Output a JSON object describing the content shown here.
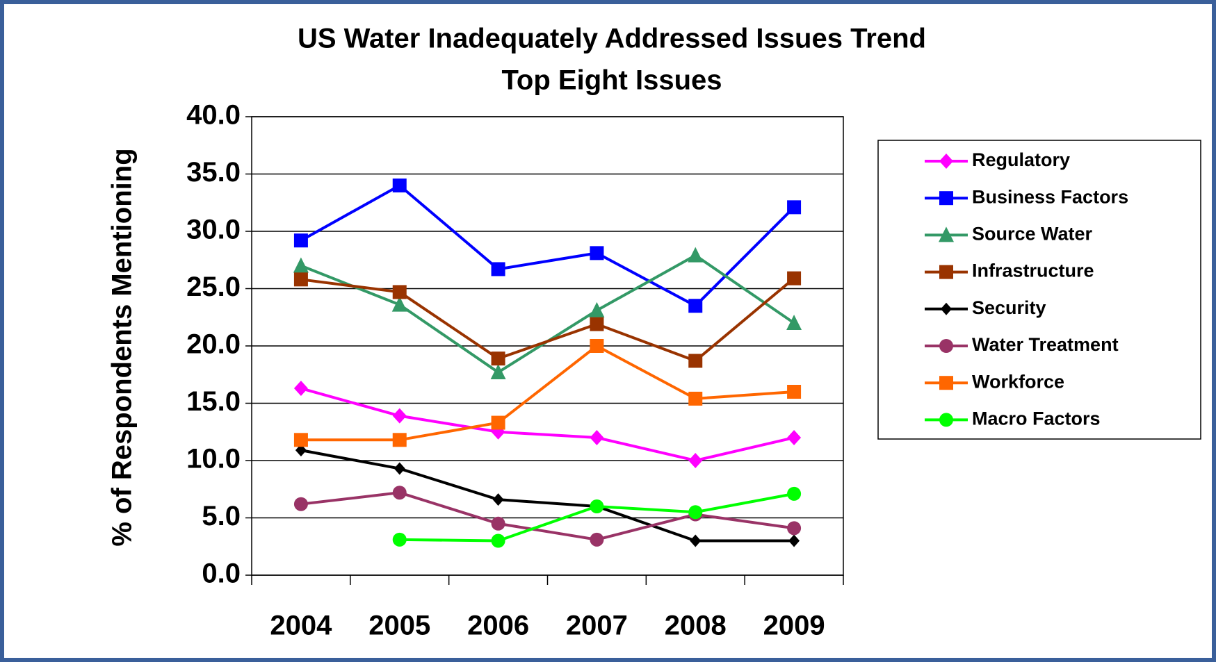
{
  "chart_data": {
    "type": "line",
    "title": "US Water Inadequately Addressed Issues Trend",
    "subtitle": "Top Eight Issues",
    "y_label": "% of Respondents Mentioning",
    "categories": [
      "2004",
      "2005",
      "2006",
      "2007",
      "2008",
      "2009"
    ],
    "ylim": [
      0,
      40
    ],
    "yticks": [
      {
        "value": 0,
        "label": "0.0"
      },
      {
        "value": 5,
        "label": "5.0"
      },
      {
        "value": 10,
        "label": "10.0"
      },
      {
        "value": 15,
        "label": "15.0"
      },
      {
        "value": 20,
        "label": "20.0"
      },
      {
        "value": 25,
        "label": "25.0"
      },
      {
        "value": 30,
        "label": "30.0"
      },
      {
        "value": 35,
        "label": "35.0"
      },
      {
        "value": 40,
        "label": "40.0"
      }
    ],
    "grid": true,
    "legend": "right",
    "series": [
      {
        "name": "Regulatory",
        "color": "#ff00ff",
        "marker": "diamond",
        "values": [
          16.3,
          13.9,
          12.5,
          12.0,
          10.0,
          12.0
        ]
      },
      {
        "name": "Business Factors",
        "color": "#0000ff",
        "marker": "square",
        "values": [
          29.2,
          34.0,
          26.7,
          28.1,
          23.5,
          32.1
        ]
      },
      {
        "name": "Source Water",
        "color": "#339966",
        "marker": "triangle",
        "values": [
          27.0,
          23.6,
          17.7,
          23.1,
          27.9,
          22.0
        ]
      },
      {
        "name": "Infrastructure",
        "color": "#993300",
        "marker": "square",
        "values": [
          25.8,
          24.7,
          18.9,
          21.9,
          18.7,
          25.9
        ]
      },
      {
        "name": "Security",
        "color": "#000000",
        "marker": "diamond",
        "values": [
          10.9,
          9.3,
          6.6,
          6.0,
          3.0,
          3.0
        ]
      },
      {
        "name": "Water Treatment",
        "color": "#993366",
        "marker": "circle",
        "values": [
          6.2,
          7.2,
          4.5,
          3.1,
          5.3,
          4.1
        ]
      },
      {
        "name": "Workforce",
        "color": "#ff6600",
        "marker": "square",
        "values": [
          11.8,
          11.8,
          13.3,
          20.0,
          15.4,
          16.0
        ]
      },
      {
        "name": "Macro Factors",
        "color": "#00ff00",
        "marker": "circle",
        "values": [
          null,
          3.1,
          3.0,
          6.0,
          5.5,
          7.1
        ]
      }
    ]
  }
}
